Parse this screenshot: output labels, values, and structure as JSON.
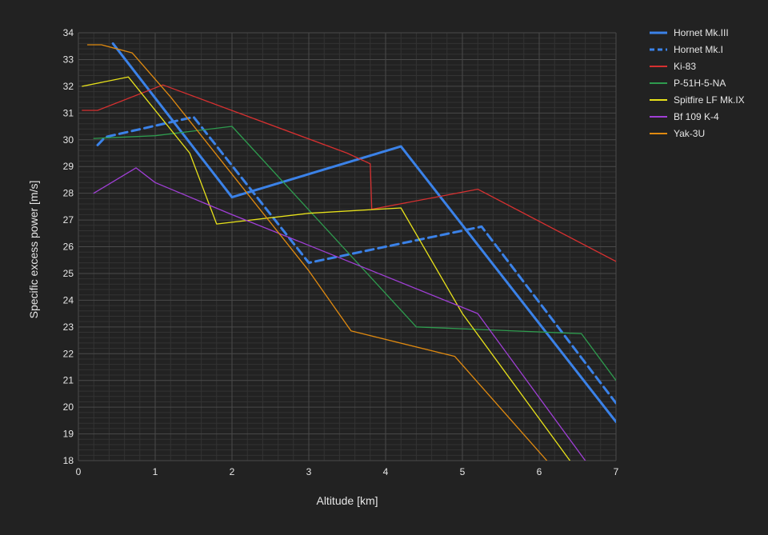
{
  "chart_data": {
    "type": "line",
    "xlabel": "Altitude [km]",
    "ylabel": "Specific excess power [m/s]",
    "xlim": [
      0,
      7
    ],
    "ylim": [
      18,
      34
    ],
    "x_ticks": [
      "0",
      "1",
      "2",
      "3",
      "4",
      "5",
      "6",
      "7"
    ],
    "y_ticks": [
      "18",
      "19",
      "20",
      "21",
      "22",
      "23",
      "24",
      "25",
      "26",
      "27",
      "28",
      "29",
      "30",
      "31",
      "32",
      "33",
      "34"
    ],
    "grid": true,
    "minor_grid": true,
    "legend_position": "right",
    "series": [
      {
        "name": "Hornet Mk.III",
        "color": "#3b82e8",
        "dash": "solid",
        "width": 3,
        "points": [
          [
            0.45,
            33.6
          ],
          [
            2.0,
            27.85
          ],
          [
            4.2,
            29.75
          ],
          [
            7.0,
            19.45
          ]
        ]
      },
      {
        "name": "Hornet Mk.I",
        "color": "#3b82e8",
        "dash": "dashed",
        "width": 3,
        "points": [
          [
            0.25,
            29.8
          ],
          [
            0.35,
            30.1
          ],
          [
            1.5,
            30.85
          ],
          [
            3.0,
            25.4
          ],
          [
            5.25,
            26.75
          ],
          [
            7.0,
            20.15
          ]
        ]
      },
      {
        "name": "Ki-83",
        "color": "#d63030",
        "dash": "solid",
        "width": 1.3,
        "points": [
          [
            0.05,
            31.1
          ],
          [
            0.25,
            31.1
          ],
          [
            1.1,
            32.05
          ],
          [
            3.5,
            29.5
          ],
          [
            3.8,
            29.1
          ],
          [
            3.82,
            27.4
          ],
          [
            5.2,
            28.15
          ],
          [
            7.0,
            25.45
          ]
        ]
      },
      {
        "name": "P-51H-5-NA",
        "color": "#2e9b4e",
        "dash": "solid",
        "width": 1.3,
        "points": [
          [
            0.2,
            30.05
          ],
          [
            1.0,
            30.15
          ],
          [
            2.0,
            30.5
          ],
          [
            4.4,
            23.0
          ],
          [
            6.55,
            22.75
          ],
          [
            7.0,
            21.0
          ]
        ]
      },
      {
        "name": "Spitfire LF Mk.IX",
        "color": "#e8e21a",
        "dash": "solid",
        "width": 1.3,
        "points": [
          [
            0.05,
            32.0
          ],
          [
            0.65,
            32.35
          ],
          [
            1.45,
            29.5
          ],
          [
            1.8,
            26.85
          ],
          [
            3.0,
            27.25
          ],
          [
            4.2,
            27.45
          ],
          [
            5.0,
            23.5
          ],
          [
            6.4,
            18.0
          ]
        ]
      },
      {
        "name": "Bf 109 K-4",
        "color": "#a03fd6",
        "dash": "solid",
        "width": 1.3,
        "points": [
          [
            0.2,
            28.0
          ],
          [
            0.75,
            28.95
          ],
          [
            1.0,
            28.4
          ],
          [
            2.0,
            27.2
          ],
          [
            3.0,
            26.05
          ],
          [
            5.2,
            23.5
          ],
          [
            6.6,
            18.0
          ]
        ]
      },
      {
        "name": "Yak-3U",
        "color": "#e08a10",
        "dash": "solid",
        "width": 1.3,
        "points": [
          [
            0.12,
            33.55
          ],
          [
            0.3,
            33.55
          ],
          [
            0.7,
            33.25
          ],
          [
            1.2,
            31.6
          ],
          [
            3.0,
            25.1
          ],
          [
            3.55,
            22.85
          ],
          [
            4.9,
            21.9
          ],
          [
            6.1,
            18.0
          ]
        ]
      }
    ]
  }
}
